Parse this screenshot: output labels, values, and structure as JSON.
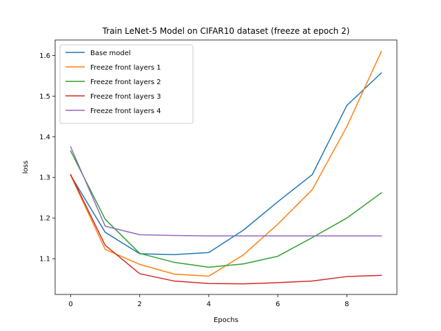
{
  "chart_data": {
    "type": "line",
    "title": "Train LeNet-5 Model on CIFAR10 dataset (freeze at epoch 2)",
    "xlabel": "Epochs",
    "ylabel": "loss",
    "xlim": [
      -0.45,
      9.45
    ],
    "ylim": [
      1.012,
      1.638
    ],
    "xticks": [
      0,
      2,
      4,
      6,
      8
    ],
    "yticks": [
      1.1,
      1.2,
      1.3,
      1.4,
      1.5,
      1.6
    ],
    "x": [
      0,
      1,
      2,
      3,
      4,
      5,
      6,
      7,
      8,
      9
    ],
    "grid": false,
    "legend_position": "upper-left",
    "series": [
      {
        "name": "Base model",
        "color": "#1f77b4",
        "values": [
          1.305,
          1.165,
          1.112,
          1.11,
          1.115,
          1.17,
          1.24,
          1.307,
          1.477,
          1.557
        ]
      },
      {
        "name": "Freeze front layers 1",
        "color": "#ff7f0e",
        "values": [
          1.305,
          1.123,
          1.086,
          1.062,
          1.057,
          1.109,
          1.185,
          1.27,
          1.425,
          1.61
        ]
      },
      {
        "name": "Freeze front layers 2",
        "color": "#2ca02c",
        "values": [
          1.365,
          1.197,
          1.113,
          1.091,
          1.079,
          1.087,
          1.106,
          1.152,
          1.2,
          1.262
        ]
      },
      {
        "name": "Freeze front layers 3",
        "color": "#d62728",
        "values": [
          1.307,
          1.133,
          1.063,
          1.045,
          1.039,
          1.038,
          1.041,
          1.045,
          1.056,
          1.059
        ]
      },
      {
        "name": "Freeze front layers 4",
        "color": "#9467bd",
        "values": [
          1.375,
          1.18,
          1.159,
          1.157,
          1.156,
          1.156,
          1.156,
          1.156,
          1.156,
          1.156
        ]
      }
    ]
  }
}
